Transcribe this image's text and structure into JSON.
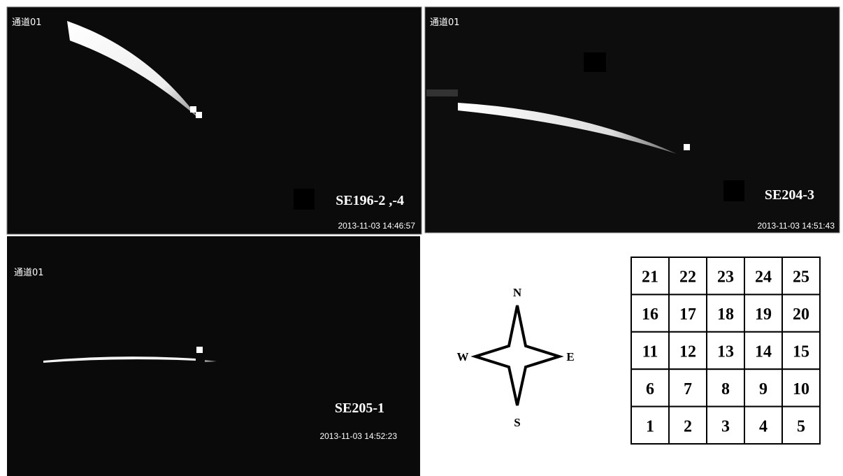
{
  "panels": [
    {
      "channel": "通道01",
      "label": "SE196-2 ,-4",
      "timestamp": "2013-11-03 14:46:57"
    },
    {
      "channel": "通道01",
      "label": "SE204-3",
      "timestamp": "2013-11-03 14:51:43"
    },
    {
      "channel": "通道01",
      "label": "SE205-1",
      "timestamp": "2013-11-03 14:52:23"
    }
  ],
  "compass": {
    "north": "N",
    "east": "E",
    "south": "S",
    "west": "W"
  },
  "grid": {
    "rows": [
      [
        21,
        22,
        23,
        24,
        25
      ],
      [
        16,
        17,
        18,
        19,
        20
      ],
      [
        11,
        12,
        13,
        14,
        15
      ],
      [
        6,
        7,
        8,
        9,
        10
      ],
      [
        1,
        2,
        3,
        4,
        5
      ]
    ]
  }
}
